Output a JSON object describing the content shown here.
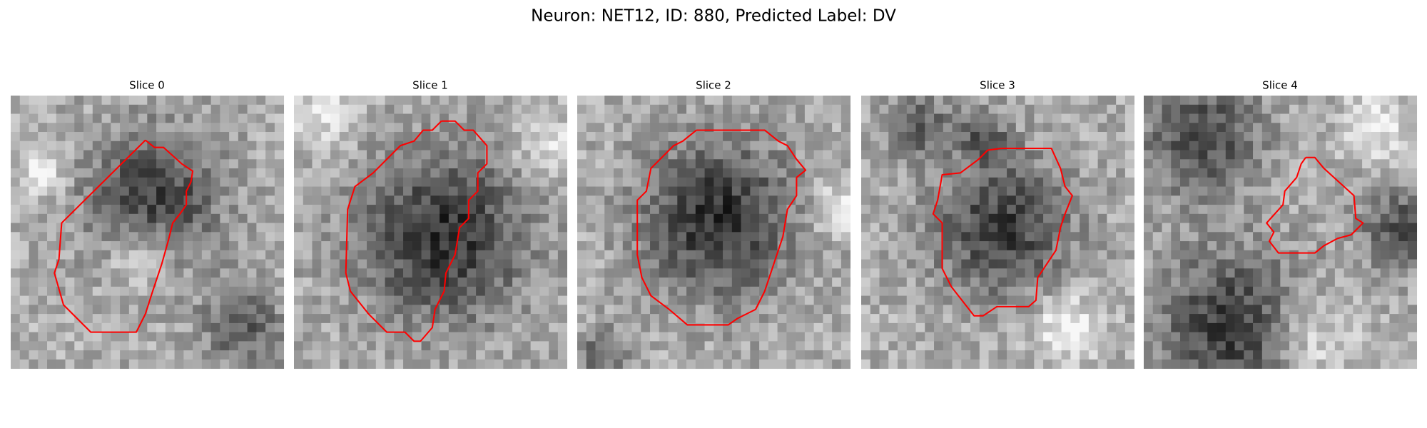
{
  "header": {
    "title": "Neuron: NET12, ID: 880, Predicted Label: DV"
  },
  "panels": [
    {
      "title": "Slice 0"
    },
    {
      "title": "Slice 1"
    },
    {
      "title": "Slice 2"
    },
    {
      "title": "Slice 3"
    },
    {
      "title": "Slice 4"
    }
  ]
}
